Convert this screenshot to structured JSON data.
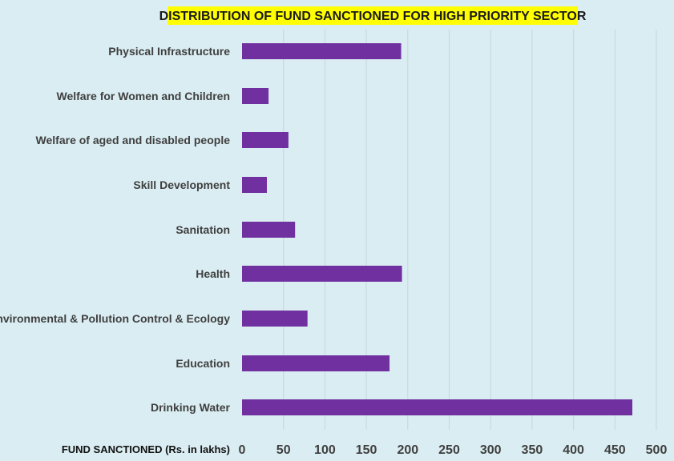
{
  "chart_data": {
    "type": "bar",
    "orientation": "horizontal",
    "title": "DISTRIBUTION OF FUND SANCTIONED FOR HIGH PRIORITY SECTOR",
    "xlabel": "FUND SANCTIONED (Rs. in lakhs)",
    "ylabel": "",
    "categories": [
      "Physical Infrastructure",
      "Welfare for Women and Children",
      "Welfare of aged and disabled people",
      "Skill Development",
      "Sanitation",
      "Health",
      "Environmental & Pollution Control & Ecology",
      "Education",
      "Drinking Water"
    ],
    "values": [
      192,
      32,
      56,
      30,
      64,
      193,
      79,
      178,
      471
    ],
    "xlim": [
      0,
      500
    ],
    "xticks": [
      0,
      50,
      100,
      150,
      200,
      250,
      300,
      350,
      400,
      450,
      500
    ],
    "grid": "vertical",
    "legend": "none"
  },
  "colors": {
    "background": "#daedf2",
    "bar": "#7030a0",
    "title_highlight": "#ffff00",
    "gridline": "#c6d6de",
    "category_text": "#3f3f3f",
    "tick_text": "#3f3f3f",
    "axis_title_text": "#111111"
  }
}
